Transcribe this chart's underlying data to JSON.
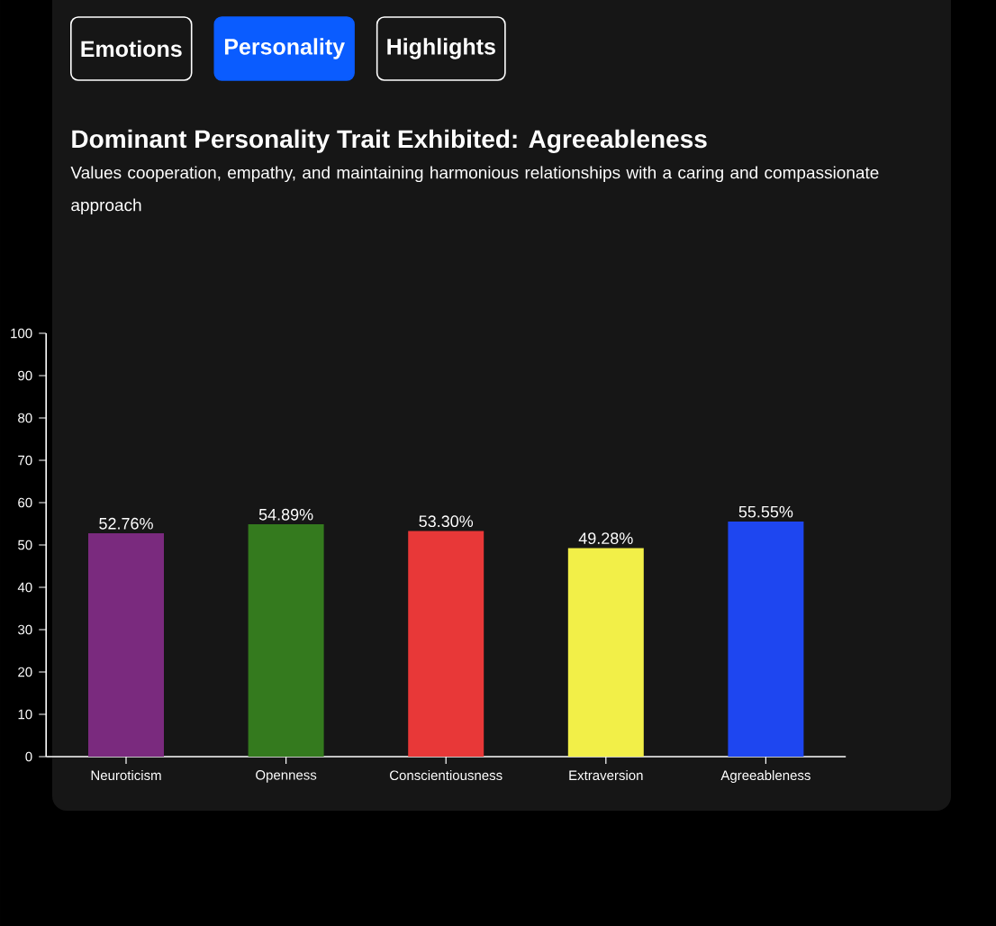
{
  "chart_data": {
    "type": "bar",
    "title": "Dominant Personality Trait Exhibited: Agreeableness",
    "subtitle": "Values cooperation, empathy, and maintaining harmonious relationships with a caring and compassionate approach",
    "annotations": [
      "Emotions",
      "Personality",
      "Highlights"
    ],
    "categories": [
      "Neuroticism",
      "Openness",
      "Conscientiousness",
      "Extraversion",
      "Agreeableness"
    ],
    "values": [
      52.76,
      54.89,
      53.3,
      49.28,
      55.55
    ],
    "value_labels": [
      "52.76%",
      "54.89%",
      "53.30%",
      "49.28%",
      "55.55%"
    ],
    "colors": [
      "#7a2a7e",
      "#347a1e",
      "#e83838",
      "#f2ef48",
      "#1e46f0"
    ],
    "ylim": [
      0,
      100
    ],
    "yticks": [
      0,
      10,
      20,
      30,
      40,
      50,
      60,
      70,
      80,
      90,
      100
    ],
    "grid": false
  }
}
